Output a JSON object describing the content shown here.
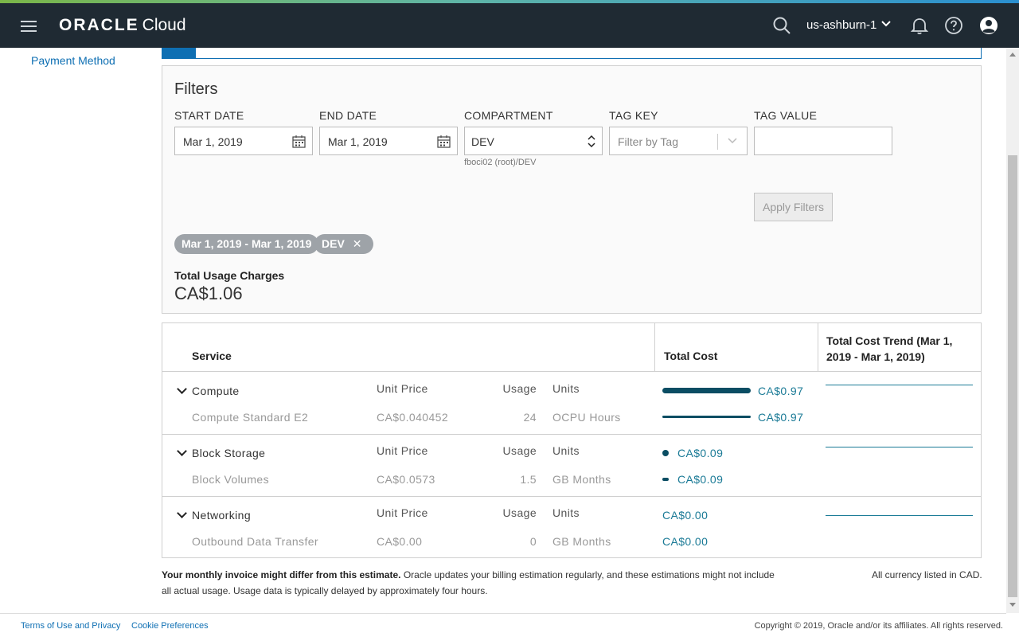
{
  "header": {
    "brand": "ORACLE",
    "product": "Cloud",
    "region": "us-ashburn-1"
  },
  "left_nav": {
    "payment_method": "Payment Method"
  },
  "filters": {
    "title": "Filters",
    "start_date_label": "START DATE",
    "start_date_value": "Mar 1, 2019",
    "end_date_label": "END DATE",
    "end_date_value": "Mar 1, 2019",
    "compartment_label": "COMPARTMENT",
    "compartment_value": "DEV",
    "compartment_path": "fboci02 (root)/DEV",
    "tag_key_label": "TAG KEY",
    "tag_key_placeholder": "Filter by Tag",
    "tag_value_label": "TAG VALUE",
    "tag_value_value": "",
    "apply_button": "Apply Filters",
    "chips": [
      "Mar 1, 2019 - Mar 1, 2019",
      "DEV"
    ],
    "total_label": "Total Usage Charges",
    "total_value": "CA$1.06"
  },
  "table": {
    "col_service": "Service",
    "col_total_cost": "Total Cost",
    "col_trend": "Total Cost Trend (Mar 1, 2019 - Mar 1, 2019)",
    "groups": [
      {
        "name": "Compute",
        "unit_price_header": "Unit Price",
        "usage_header": "Usage",
        "units_header": "Units",
        "total": "CA$0.97",
        "bar_fraction": 1.0,
        "item": {
          "name": "Compute Standard E2",
          "unit_price": "CA$0.040452",
          "usage": "24",
          "units": "OCPU Hours",
          "cost": "CA$0.97",
          "bar_fraction": 1.0
        }
      },
      {
        "name": "Block Storage",
        "unit_price_header": "Unit Price",
        "usage_header": "Usage",
        "units_header": "Units",
        "total": "CA$0.09",
        "bar_fraction": 0.09,
        "item": {
          "name": "Block Volumes",
          "unit_price": "CA$0.0573",
          "usage": "1.5",
          "units": "GB Months",
          "cost": "CA$0.09",
          "bar_fraction": 0.09
        }
      },
      {
        "name": "Networking",
        "unit_price_header": "Unit Price",
        "usage_header": "Usage",
        "units_header": "Units",
        "total": "CA$0.00",
        "bar_fraction": 0,
        "item": {
          "name": "Outbound Data Transfer",
          "unit_price": "CA$0.00",
          "usage": "0",
          "units": "GB Months",
          "cost": "CA$0.00",
          "bar_fraction": 0
        }
      }
    ]
  },
  "notes": {
    "estimate_bold": "Your monthly invoice might differ from this estimate.",
    "estimate_text": " Oracle updates your billing estimation regularly, and these estimations might not include all actual usage. Usage data is typically delayed by approximately four hours.",
    "currency": "All currency listed in CAD."
  },
  "footer": {
    "terms": "Terms of Use and Privacy",
    "cookies": "Cookie Preferences",
    "copyright": "Copyright © 2019, Oracle and/or its affiliates. All rights reserved."
  },
  "icons": [
    "menu-icon",
    "search-icon",
    "chevron-down-icon",
    "bell-icon",
    "help-icon",
    "user-icon",
    "calendar-icon",
    "sort-arrows-icon",
    "close-icon"
  ],
  "colors": {
    "topbar": "#1f2a33",
    "link": "#0e6fb3",
    "bar": "#0a4d63",
    "cost": "#1a7a96",
    "chip": "#9ea3a8"
  }
}
